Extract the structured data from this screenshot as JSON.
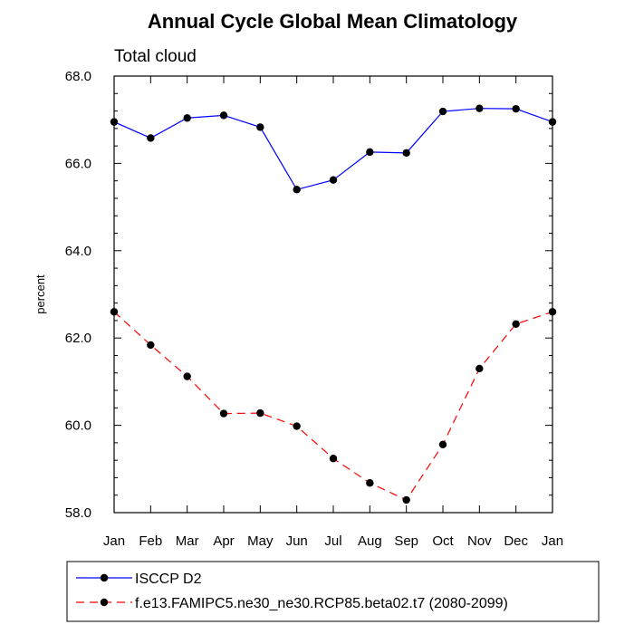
{
  "chart_data": {
    "type": "line",
    "title": "Annual Cycle Global Mean Climatology",
    "subtitle": "Total cloud",
    "ylabel": "percent",
    "xlabel": "",
    "categories": [
      "Jan",
      "Feb",
      "Mar",
      "Apr",
      "May",
      "Jun",
      "Jul",
      "Aug",
      "Sep",
      "Oct",
      "Nov",
      "Dec",
      "Jan"
    ],
    "ylim": [
      58.0,
      68.0
    ],
    "yticks": [
      "58.0",
      "60.0",
      "62.0",
      "64.0",
      "66.0",
      "68.0"
    ],
    "grid": false,
    "legend_position": "bottom",
    "series": [
      {
        "name": "ISCCP D2",
        "color": "#0000ff",
        "dash": "solid",
        "marker": "filled-circle",
        "values": [
          66.95,
          66.58,
          67.04,
          67.1,
          66.83,
          65.4,
          65.62,
          66.26,
          66.24,
          67.19,
          67.26,
          67.25,
          66.95
        ]
      },
      {
        "name": "f.e13.FAMIPC5.ne30_ne30.RCP85.beta02.t7 (2080-2099)",
        "color": "#ff0000",
        "dash": "dashed",
        "marker": "filled-circle",
        "values": [
          62.6,
          61.84,
          61.12,
          60.27,
          60.28,
          59.98,
          59.24,
          58.68,
          58.29,
          59.56,
          61.3,
          62.32,
          62.6
        ]
      }
    ]
  }
}
